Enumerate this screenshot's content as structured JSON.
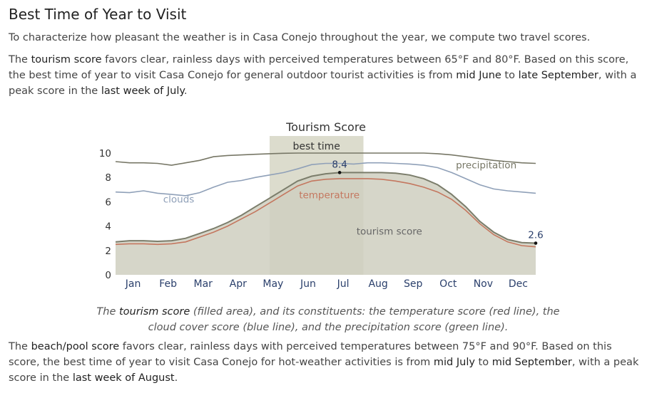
{
  "page": {
    "title": "Best Time of Year to Visit",
    "intro": "To characterize how pleasant the weather is in Casa Conejo throughout the year, we compute two travel scores.",
    "tourism_para": {
      "p1": "The ",
      "k1": "tourism score",
      "p2": " favors clear, rainless days with perceived temperatures between 65°F and 80°F. Based on this score, the best time of year to visit Casa Conejo for general outdoor tourist activities is from ",
      "k2": "mid June",
      "p3": " to ",
      "k3": "late September",
      "p4": ", with a peak score in the ",
      "k4": "last week of July",
      "p5": "."
    },
    "caption": {
      "p1": "The ",
      "k1": "tourism score",
      "p2": " (filled area), and its constituents: the temperature score (red line), the cloud cover score (blue line), and the precipitation score (green line)."
    },
    "beach_para": {
      "p1": "The ",
      "k1": "beach/pool score",
      "p2": " favors clear, rainless days with perceived temperatures between 75°F and 90°F. Based on this score, the best time of year to visit Casa Conejo for hot-weather activities is from ",
      "k2": "mid July",
      "p3": " to ",
      "k3": "mid September",
      "p4": ", with a peak score in the ",
      "k4": "last week of August",
      "p5": "."
    }
  },
  "chart_data": {
    "type": "area",
    "title": "Tourism Score",
    "months": [
      "Jan",
      "Feb",
      "Mar",
      "Apr",
      "May",
      "Jun",
      "Jul",
      "Aug",
      "Sep",
      "Oct",
      "Nov",
      "Dec"
    ],
    "ylim": [
      0,
      10
    ],
    "yticks": [
      0,
      2,
      4,
      6,
      8,
      10
    ],
    "grid": false,
    "x_unit": "month",
    "best_time": {
      "label": "best time",
      "start": 5.5,
      "end": 8.85
    },
    "series": [
      {
        "name": "tourism score",
        "role": "area",
        "color": "#7b7d6b",
        "fill": "#cfcfbf",
        "label_pos": [
          8.6,
          3.3
        ],
        "points": [
          [
            0,
            2.7
          ],
          [
            0.5,
            2.8
          ],
          [
            1,
            2.8
          ],
          [
            1.5,
            2.75
          ],
          [
            2,
            2.8
          ],
          [
            2.5,
            3.0
          ],
          [
            3,
            3.4
          ],
          [
            3.5,
            3.8
          ],
          [
            4,
            4.3
          ],
          [
            4.5,
            4.9
          ],
          [
            5,
            5.6
          ],
          [
            5.5,
            6.3
          ],
          [
            6,
            7.0
          ],
          [
            6.5,
            7.7
          ],
          [
            7,
            8.1
          ],
          [
            7.5,
            8.3
          ],
          [
            8,
            8.4
          ],
          [
            8.5,
            8.4
          ],
          [
            9,
            8.4
          ],
          [
            9.5,
            8.4
          ],
          [
            10,
            8.35
          ],
          [
            10.5,
            8.2
          ],
          [
            11,
            7.9
          ],
          [
            11.5,
            7.4
          ],
          [
            12,
            6.6
          ],
          [
            12.5,
            5.6
          ],
          [
            13,
            4.4
          ],
          [
            13.5,
            3.5
          ],
          [
            14,
            2.9
          ],
          [
            14.5,
            2.65
          ],
          [
            15,
            2.6
          ]
        ]
      },
      {
        "name": "temperature",
        "role": "line",
        "color": "#c4775f",
        "label_pos": [
          6.55,
          6.3
        ],
        "points": [
          [
            0,
            2.5
          ],
          [
            0.5,
            2.55
          ],
          [
            1,
            2.55
          ],
          [
            1.5,
            2.5
          ],
          [
            2,
            2.55
          ],
          [
            2.5,
            2.7
          ],
          [
            3,
            3.1
          ],
          [
            3.5,
            3.5
          ],
          [
            4,
            4.0
          ],
          [
            4.5,
            4.6
          ],
          [
            5,
            5.2
          ],
          [
            5.5,
            5.9
          ],
          [
            6,
            6.6
          ],
          [
            6.5,
            7.3
          ],
          [
            7,
            7.7
          ],
          [
            7.5,
            7.85
          ],
          [
            8,
            7.9
          ],
          [
            8.5,
            7.9
          ],
          [
            9,
            7.9
          ],
          [
            9.5,
            7.85
          ],
          [
            10,
            7.7
          ],
          [
            10.5,
            7.5
          ],
          [
            11,
            7.2
          ],
          [
            11.5,
            6.8
          ],
          [
            12,
            6.2
          ],
          [
            12.5,
            5.3
          ],
          [
            13,
            4.2
          ],
          [
            13.5,
            3.3
          ],
          [
            14,
            2.7
          ],
          [
            14.5,
            2.4
          ],
          [
            15,
            2.3
          ]
        ]
      },
      {
        "name": "clouds",
        "role": "line",
        "color": "#8fa0b8",
        "label_pos": [
          1.7,
          5.95
        ],
        "points": [
          [
            0,
            6.8
          ],
          [
            0.5,
            6.75
          ],
          [
            1,
            6.9
          ],
          [
            1.5,
            6.7
          ],
          [
            2,
            6.6
          ],
          [
            2.5,
            6.5
          ],
          [
            3,
            6.75
          ],
          [
            3.5,
            7.2
          ],
          [
            4,
            7.6
          ],
          [
            4.5,
            7.75
          ],
          [
            5,
            8.0
          ],
          [
            5.5,
            8.2
          ],
          [
            6,
            8.4
          ],
          [
            6.5,
            8.7
          ],
          [
            7,
            9.05
          ],
          [
            7.5,
            9.15
          ],
          [
            8,
            9.15
          ],
          [
            8.5,
            9.1
          ],
          [
            9,
            9.2
          ],
          [
            9.5,
            9.2
          ],
          [
            10,
            9.15
          ],
          [
            10.5,
            9.1
          ],
          [
            11,
            9.0
          ],
          [
            11.5,
            8.8
          ],
          [
            12,
            8.4
          ],
          [
            12.5,
            7.9
          ],
          [
            13,
            7.4
          ],
          [
            13.5,
            7.05
          ],
          [
            14,
            6.9
          ],
          [
            14.5,
            6.8
          ],
          [
            15,
            6.7
          ]
        ]
      },
      {
        "name": "precipitation",
        "role": "line",
        "color": "#777766",
        "label_pos": [
          12.15,
          8.75
        ],
        "points": [
          [
            0,
            9.3
          ],
          [
            0.5,
            9.2
          ],
          [
            1,
            9.2
          ],
          [
            1.5,
            9.15
          ],
          [
            2,
            9.0
          ],
          [
            2.5,
            9.2
          ],
          [
            3,
            9.4
          ],
          [
            3.5,
            9.7
          ],
          [
            4,
            9.8
          ],
          [
            4.5,
            9.85
          ],
          [
            5,
            9.9
          ],
          [
            5.5,
            9.95
          ],
          [
            6,
            9.98
          ],
          [
            6.5,
            10
          ],
          [
            7,
            10
          ],
          [
            7.5,
            10
          ],
          [
            8,
            10
          ],
          [
            8.5,
            10
          ],
          [
            9,
            10
          ],
          [
            9.5,
            10
          ],
          [
            10,
            10
          ],
          [
            10.5,
            10
          ],
          [
            11,
            10
          ],
          [
            11.5,
            9.95
          ],
          [
            12,
            9.85
          ],
          [
            12.5,
            9.7
          ],
          [
            13,
            9.55
          ],
          [
            13.5,
            9.4
          ],
          [
            14,
            9.3
          ],
          [
            14.5,
            9.2
          ],
          [
            15,
            9.15
          ]
        ]
      }
    ],
    "annotations": [
      {
        "label": "8.4",
        "x": 8.0,
        "y": 8.4
      },
      {
        "label": "2.6",
        "x": 15.0,
        "y": 2.6
      }
    ]
  }
}
